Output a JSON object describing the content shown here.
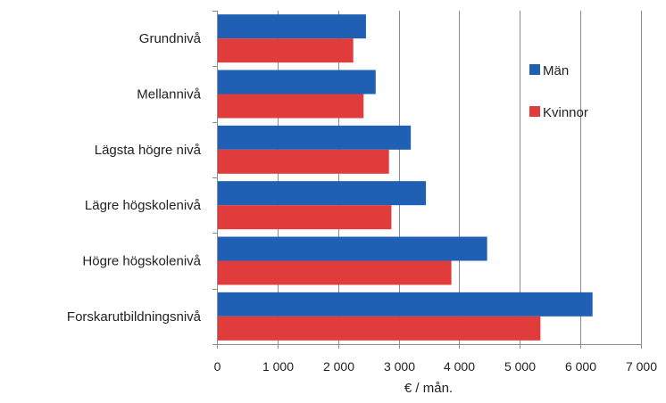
{
  "chart_data": {
    "type": "bar",
    "orientation": "horizontal",
    "categories": [
      "Grundnivå",
      "Mellannivå",
      "Lägsta högre nivå",
      "Lägre högskolenivå",
      "Högre högskolenivå",
      "Forskarutbildningsnivå"
    ],
    "series": [
      {
        "name": "Män",
        "color": "#1f5fb4",
        "values": [
          2460,
          2620,
          3200,
          3450,
          4460,
          6200
        ]
      },
      {
        "name": "Kvinnor",
        "color": "#e03c3c",
        "values": [
          2250,
          2420,
          2840,
          2880,
          3870,
          5340
        ]
      }
    ],
    "xlabel": "€ / mån.",
    "xlim": [
      0,
      7000
    ],
    "xticks": [
      0,
      1000,
      2000,
      3000,
      4000,
      5000,
      6000,
      7000
    ],
    "xtick_labels": [
      "0",
      "1 000",
      "2 000",
      "3 000",
      "4 000",
      "5 000",
      "6 000",
      "7 000"
    ],
    "grid": "vertical",
    "legend_position": "right"
  }
}
